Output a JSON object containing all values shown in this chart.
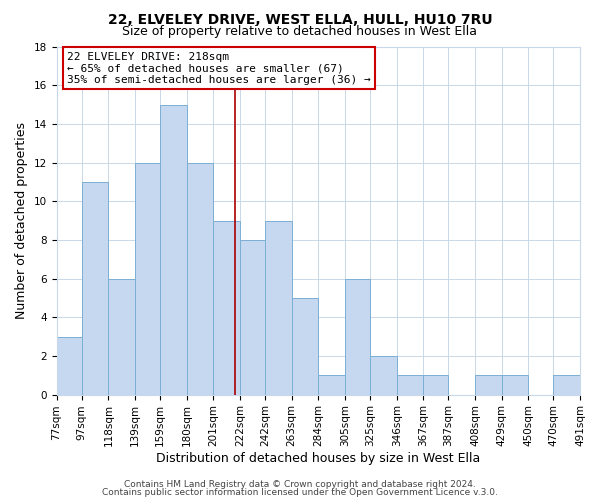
{
  "title": "22, ELVELEY DRIVE, WEST ELLA, HULL, HU10 7RU",
  "subtitle": "Size of property relative to detached houses in West Ella",
  "xlabel": "Distribution of detached houses by size in West Ella",
  "ylabel": "Number of detached properties",
  "bin_labels": [
    "77sqm",
    "97sqm",
    "118sqm",
    "139sqm",
    "159sqm",
    "180sqm",
    "201sqm",
    "222sqm",
    "242sqm",
    "263sqm",
    "284sqm",
    "305sqm",
    "325sqm",
    "346sqm",
    "367sqm",
    "387sqm",
    "408sqm",
    "429sqm",
    "450sqm",
    "470sqm",
    "491sqm"
  ],
  "bin_edges": [
    77,
    97,
    118,
    139,
    159,
    180,
    201,
    222,
    242,
    263,
    284,
    305,
    325,
    346,
    367,
    387,
    408,
    429,
    450,
    470,
    491
  ],
  "counts": [
    3,
    11,
    6,
    12,
    15,
    12,
    9,
    8,
    9,
    5,
    1,
    6,
    2,
    1,
    1,
    0,
    1,
    1,
    0,
    1
  ],
  "bar_color": "#c5d8f0",
  "bar_edge_color": "#7bafd4",
  "property_size": 218,
  "vline_color": "#aa0000",
  "annotation_line1": "22 ELVELEY DRIVE: 218sqm",
  "annotation_line2": "← 65% of detached houses are smaller (67)",
  "annotation_line3": "35% of semi-detached houses are larger (36) →",
  "annotation_box_color": "#ffffff",
  "annotation_box_edge_color": "#cc0000",
  "ylim": [
    0,
    18
  ],
  "yticks": [
    0,
    2,
    4,
    6,
    8,
    10,
    12,
    14,
    16,
    18
  ],
  "footer1": "Contains HM Land Registry data © Crown copyright and database right 2024.",
  "footer2": "Contains public sector information licensed under the Open Government Licence v.3.0.",
  "background_color": "#ffffff",
  "grid_color": "#c8d8e8",
  "title_fontsize": 10,
  "subtitle_fontsize": 9,
  "axis_label_fontsize": 9,
  "tick_fontsize": 7.5,
  "footer_fontsize": 6.5
}
